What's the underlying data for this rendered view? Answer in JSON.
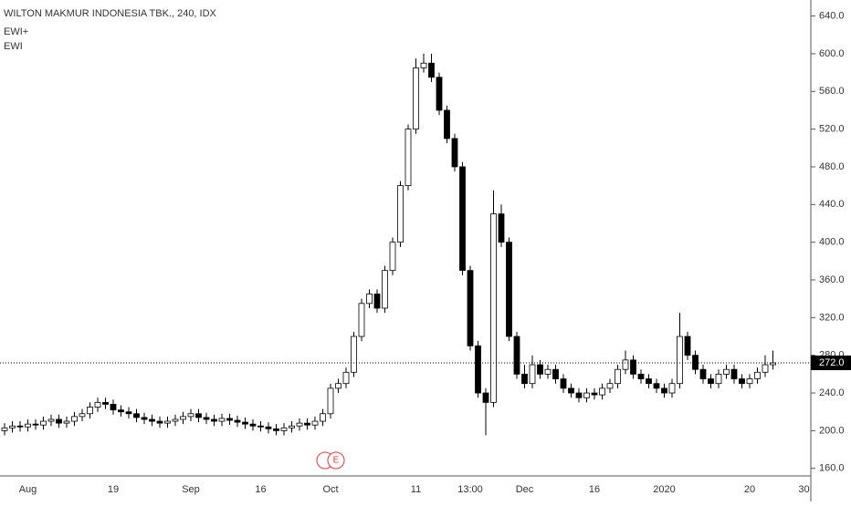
{
  "chart_data": {
    "type": "candlestick",
    "title": "WILTON MAKMUR INDONESIA TBK., 240, IDX",
    "indicators": [
      "EWI+",
      "EWI"
    ],
    "event_marker": "E",
    "categories": [
      null,
      null,
      null,
      "Aug",
      null,
      null,
      null,
      null,
      null,
      null,
      null,
      null,
      null,
      null,
      "19",
      null,
      null,
      null,
      null,
      null,
      null,
      null,
      null,
      null,
      "Sep",
      null,
      null,
      null,
      null,
      null,
      null,
      null,
      null,
      "16",
      null,
      null,
      null,
      null,
      null,
      null,
      null,
      null,
      "Oct",
      null,
      null,
      null,
      null,
      null,
      null,
      null,
      null,
      null,
      null,
      "11",
      null,
      null,
      null,
      null,
      null,
      null,
      "13:00",
      null,
      null,
      null,
      null,
      null,
      null,
      "Dec",
      null,
      null,
      null,
      null,
      null,
      null,
      null,
      null,
      "16",
      null,
      null,
      null,
      null,
      null,
      null,
      null,
      null,
      "2020",
      null,
      null,
      null,
      null,
      null,
      null,
      null,
      null,
      null,
      null,
      "20",
      null,
      null,
      null,
      null,
      null,
      null,
      "30"
    ],
    "open": [
      200,
      203,
      205,
      204,
      207,
      206,
      210,
      212,
      208,
      210,
      215,
      218,
      225,
      230,
      228,
      222,
      220,
      218,
      214,
      212,
      210,
      208,
      210,
      212,
      215,
      218,
      214,
      212,
      210,
      213,
      211,
      209,
      207,
      205,
      204,
      202,
      200,
      203,
      205,
      208,
      206,
      210,
      218,
      245,
      250,
      262,
      300,
      335,
      345,
      330,
      370,
      400,
      460,
      520,
      585,
      590,
      575,
      540,
      510,
      480,
      370,
      290,
      240,
      230,
      430,
      400,
      300,
      260,
      250,
      270,
      260,
      265,
      255,
      245,
      240,
      235,
      240,
      238,
      245,
      250,
      265,
      275,
      260,
      255,
      250,
      245,
      240,
      250,
      300,
      280,
      265,
      255,
      250,
      260,
      265,
      255,
      250,
      255,
      262,
      270,
      null,
      null,
      null,
      null
    ],
    "high": [
      208,
      210,
      210,
      212,
      212,
      215,
      217,
      217,
      215,
      220,
      223,
      230,
      235,
      235,
      233,
      227,
      225,
      223,
      219,
      217,
      215,
      215,
      217,
      220,
      223,
      223,
      219,
      217,
      218,
      218,
      216,
      214,
      212,
      210,
      209,
      207,
      208,
      210,
      213,
      213,
      215,
      223,
      250,
      255,
      267,
      305,
      340,
      350,
      350,
      375,
      405,
      465,
      525,
      595,
      600,
      600,
      580,
      545,
      515,
      485,
      375,
      295,
      245,
      455,
      440,
      405,
      305,
      270,
      280,
      275,
      270,
      270,
      260,
      250,
      245,
      245,
      245,
      250,
      255,
      270,
      285,
      280,
      265,
      260,
      255,
      250,
      255,
      325,
      305,
      285,
      270,
      260,
      265,
      270,
      270,
      260,
      260,
      267,
      280,
      285,
      null,
      null,
      null,
      null
    ],
    "low": [
      195,
      198,
      199,
      199,
      201,
      201,
      205,
      203,
      203,
      205,
      210,
      213,
      220,
      223,
      217,
      215,
      213,
      209,
      207,
      205,
      203,
      203,
      205,
      207,
      210,
      209,
      207,
      205,
      205,
      206,
      204,
      202,
      200,
      199,
      197,
      195,
      195,
      198,
      200,
      201,
      201,
      205,
      213,
      240,
      245,
      257,
      295,
      330,
      325,
      325,
      365,
      395,
      455,
      515,
      580,
      570,
      535,
      505,
      475,
      365,
      285,
      235,
      195,
      225,
      395,
      295,
      255,
      245,
      245,
      255,
      255,
      250,
      240,
      235,
      230,
      230,
      233,
      233,
      240,
      245,
      260,
      255,
      250,
      245,
      240,
      235,
      235,
      245,
      275,
      260,
      250,
      245,
      245,
      255,
      250,
      245,
      245,
      250,
      257,
      265,
      null,
      null,
      null,
      null
    ],
    "close": [
      203,
      205,
      204,
      207,
      206,
      210,
      212,
      208,
      210,
      215,
      218,
      225,
      230,
      228,
      222,
      220,
      218,
      214,
      212,
      210,
      208,
      210,
      212,
      215,
      218,
      214,
      212,
      210,
      213,
      211,
      209,
      207,
      205,
      204,
      202,
      200,
      203,
      205,
      208,
      206,
      210,
      218,
      245,
      250,
      262,
      300,
      335,
      345,
      330,
      370,
      400,
      460,
      520,
      585,
      590,
      575,
      540,
      510,
      480,
      370,
      290,
      240,
      230,
      430,
      400,
      300,
      260,
      250,
      270,
      260,
      265,
      255,
      245,
      240,
      235,
      240,
      238,
      245,
      250,
      265,
      275,
      260,
      255,
      250,
      245,
      240,
      250,
      300,
      280,
      265,
      255,
      250,
      260,
      265,
      255,
      250,
      255,
      262,
      270,
      272,
      null,
      null,
      null,
      null
    ],
    "up_color": "#ffffff",
    "down_color": "#000000",
    "last_price": {
      "value": 272,
      "label": "272.0"
    },
    "ylim": [
      152,
      657
    ],
    "yticks": [
      {
        "value": 160,
        "label": "160.0"
      },
      {
        "value": 200,
        "label": "200.0"
      },
      {
        "value": 240,
        "label": "240.0"
      },
      {
        "value": 280,
        "label": "280.0"
      },
      {
        "value": 320,
        "label": "320.0"
      },
      {
        "value": 360,
        "label": "360.0"
      },
      {
        "value": 400,
        "label": "400.0"
      },
      {
        "value": 440,
        "label": "440.0"
      },
      {
        "value": 480,
        "label": "480.0"
      },
      {
        "value": 520,
        "label": "520.0"
      },
      {
        "value": 560,
        "label": "560.0"
      },
      {
        "value": 600,
        "label": "600.0"
      },
      {
        "value": 640,
        "label": "640.0"
      }
    ]
  }
}
